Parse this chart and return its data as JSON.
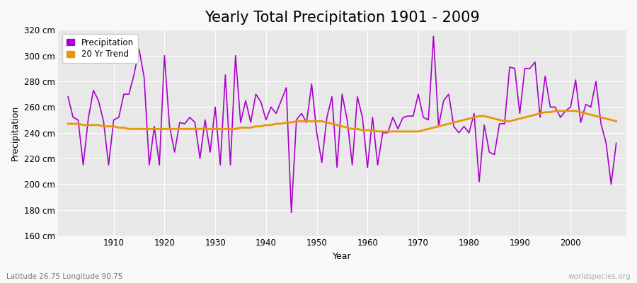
{
  "title": "Yearly Total Precipitation 1901 - 2009",
  "xlabel": "Year",
  "ylabel": "Precipitation",
  "subtitle": "Latitude 26.75 Longitude 90.75",
  "watermark": "worldspecies.org",
  "years": [
    1901,
    1902,
    1903,
    1904,
    1905,
    1906,
    1907,
    1908,
    1909,
    1910,
    1911,
    1912,
    1913,
    1914,
    1915,
    1916,
    1917,
    1918,
    1919,
    1920,
    1921,
    1922,
    1923,
    1924,
    1925,
    1926,
    1927,
    1928,
    1929,
    1930,
    1931,
    1932,
    1933,
    1934,
    1935,
    1936,
    1937,
    1938,
    1939,
    1940,
    1941,
    1942,
    1943,
    1944,
    1945,
    1946,
    1947,
    1948,
    1949,
    1950,
    1951,
    1952,
    1953,
    1954,
    1955,
    1956,
    1957,
    1958,
    1959,
    1960,
    1961,
    1962,
    1963,
    1964,
    1965,
    1966,
    1967,
    1968,
    1969,
    1970,
    1971,
    1972,
    1973,
    1974,
    1975,
    1976,
    1977,
    1978,
    1979,
    1980,
    1981,
    1982,
    1983,
    1984,
    1985,
    1986,
    1987,
    1988,
    1989,
    1990,
    1991,
    1992,
    1993,
    1994,
    1995,
    1996,
    1997,
    1998,
    1999,
    2000,
    2001,
    2002,
    2003,
    2004,
    2005,
    2006,
    2007,
    2008,
    2009
  ],
  "precip": [
    268,
    252,
    250,
    215,
    251,
    273,
    265,
    249,
    215,
    250,
    252,
    270,
    270,
    285,
    305,
    283,
    215,
    245,
    215,
    300,
    245,
    225,
    248,
    247,
    252,
    248,
    220,
    250,
    225,
    260,
    215,
    285,
    215,
    300,
    248,
    265,
    248,
    270,
    264,
    250,
    260,
    255,
    265,
    275,
    178,
    250,
    255,
    248,
    278,
    240,
    217,
    252,
    268,
    213,
    270,
    250,
    215,
    268,
    252,
    213,
    252,
    215,
    240,
    240,
    252,
    243,
    252,
    253,
    253,
    270,
    252,
    250,
    315,
    245,
    265,
    270,
    245,
    240,
    245,
    240,
    255,
    202,
    246,
    225,
    223,
    247,
    247,
    291,
    290,
    255,
    290,
    290,
    295,
    252,
    284,
    260,
    260,
    252,
    257,
    260,
    281,
    248,
    262,
    260,
    280,
    247,
    232,
    200,
    232
  ],
  "trend": [
    247,
    247,
    247,
    246,
    246,
    246,
    246,
    245,
    245,
    245,
    244,
    244,
    243,
    243,
    243,
    243,
    243,
    243,
    243,
    243,
    243,
    243,
    243,
    243,
    243,
    243,
    243,
    243,
    243,
    243,
    243,
    243,
    243,
    243,
    244,
    244,
    244,
    245,
    245,
    246,
    246,
    247,
    247,
    248,
    248,
    249,
    249,
    249,
    249,
    249,
    249,
    248,
    247,
    246,
    245,
    244,
    243,
    243,
    242,
    242,
    242,
    241,
    241,
    241,
    241,
    241,
    241,
    241,
    241,
    241,
    242,
    243,
    244,
    245,
    246,
    247,
    248,
    249,
    250,
    251,
    252,
    253,
    253,
    252,
    251,
    250,
    249,
    249,
    250,
    251,
    252,
    253,
    254,
    255,
    256,
    256,
    257,
    257,
    257,
    257,
    257,
    256,
    255,
    254,
    253,
    252,
    251,
    250,
    249
  ],
  "precip_color": "#aa00cc",
  "trend_color": "#e8960a",
  "fig_bg_color": "#f8f8f8",
  "plot_bg_color": "#e8e8e8",
  "grid_color": "#ffffff",
  "ylim": [
    160,
    320
  ],
  "yticks": [
    160,
    180,
    200,
    220,
    240,
    260,
    280,
    300,
    320
  ],
  "ytick_labels": [
    "160 cm",
    "180 cm",
    "200 cm",
    "220 cm",
    "240 cm",
    "260 cm",
    "280 cm",
    "300 cm",
    "320 cm"
  ],
  "xtick_positions": [
    1910,
    1920,
    1930,
    1940,
    1950,
    1960,
    1970,
    1980,
    1990,
    2000
  ],
  "title_fontsize": 15,
  "label_fontsize": 9,
  "tick_fontsize": 8.5,
  "legend_fontsize": 8.5
}
